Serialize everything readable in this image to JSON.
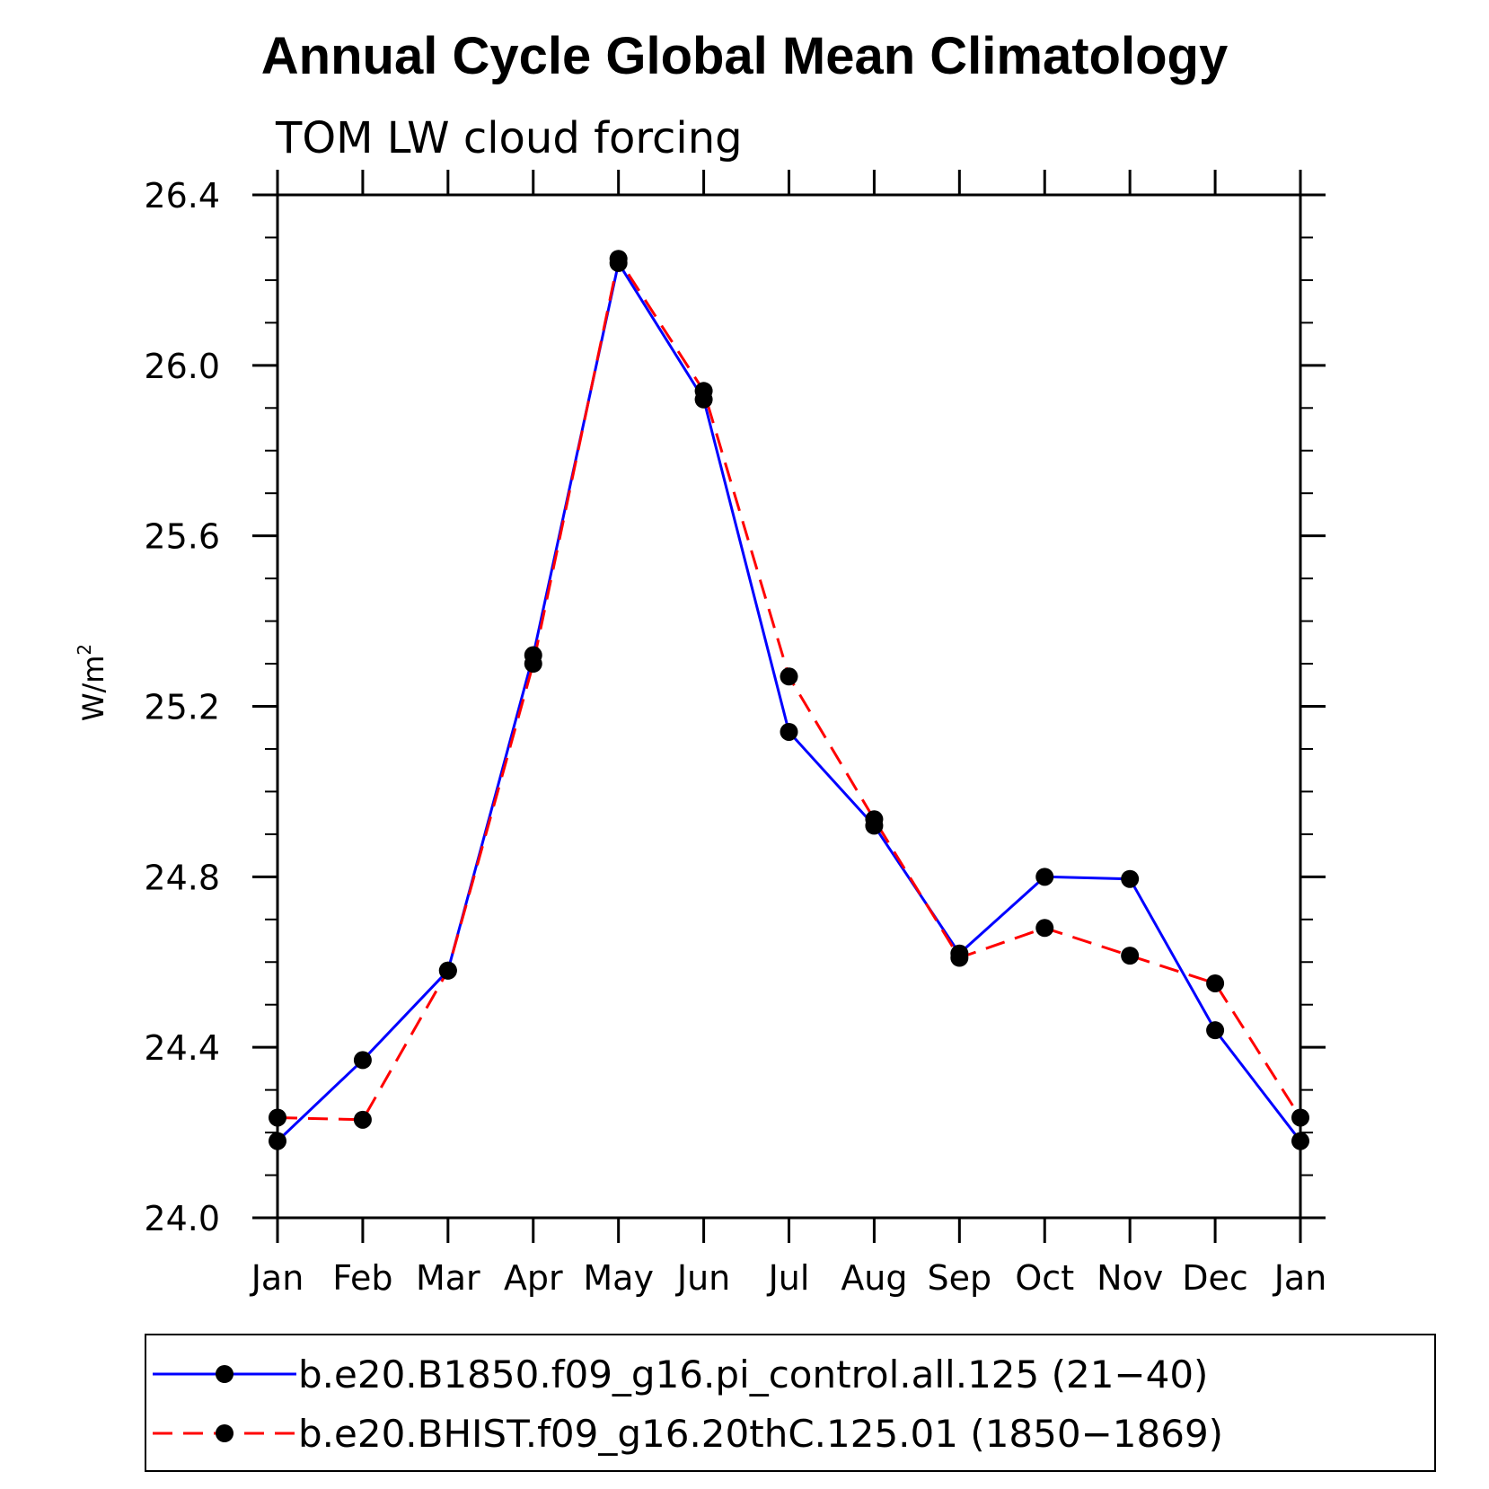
{
  "chart_data": {
    "type": "line",
    "title": "Annual Cycle Global Mean Climatology",
    "subtitle": "TOM LW cloud forcing",
    "ylabel_base": "W/m",
    "ylabel_sup": "2",
    "xlabel": "",
    "categories": [
      "Jan",
      "Feb",
      "Mar",
      "Apr",
      "May",
      "Jun",
      "Jul",
      "Aug",
      "Sep",
      "Oct",
      "Nov",
      "Dec",
      "Jan"
    ],
    "ylim": [
      24.0,
      26.4
    ],
    "yticks": [
      "24.0",
      "24.4",
      "24.8",
      "25.2",
      "25.6",
      "26.0",
      "26.4"
    ],
    "series": [
      {
        "name": "b.e20.B1850.f09_g16.pi_control.all.125 (21−40)",
        "color": "#0000ff",
        "dash": "solid",
        "values": [
          24.18,
          24.37,
          24.58,
          25.32,
          26.24,
          25.92,
          25.14,
          24.92,
          24.62,
          24.8,
          24.795,
          24.44,
          24.18
        ]
      },
      {
        "name": "b.e20.BHIST.f09_g16.20thC.125.01 (1850−1869)",
        "color": "#ff0000",
        "dash": "dashed",
        "values": [
          24.235,
          24.23,
          24.58,
          25.3,
          26.25,
          25.94,
          25.27,
          24.935,
          24.61,
          24.68,
          24.615,
          24.55,
          24.235
        ]
      }
    ]
  }
}
